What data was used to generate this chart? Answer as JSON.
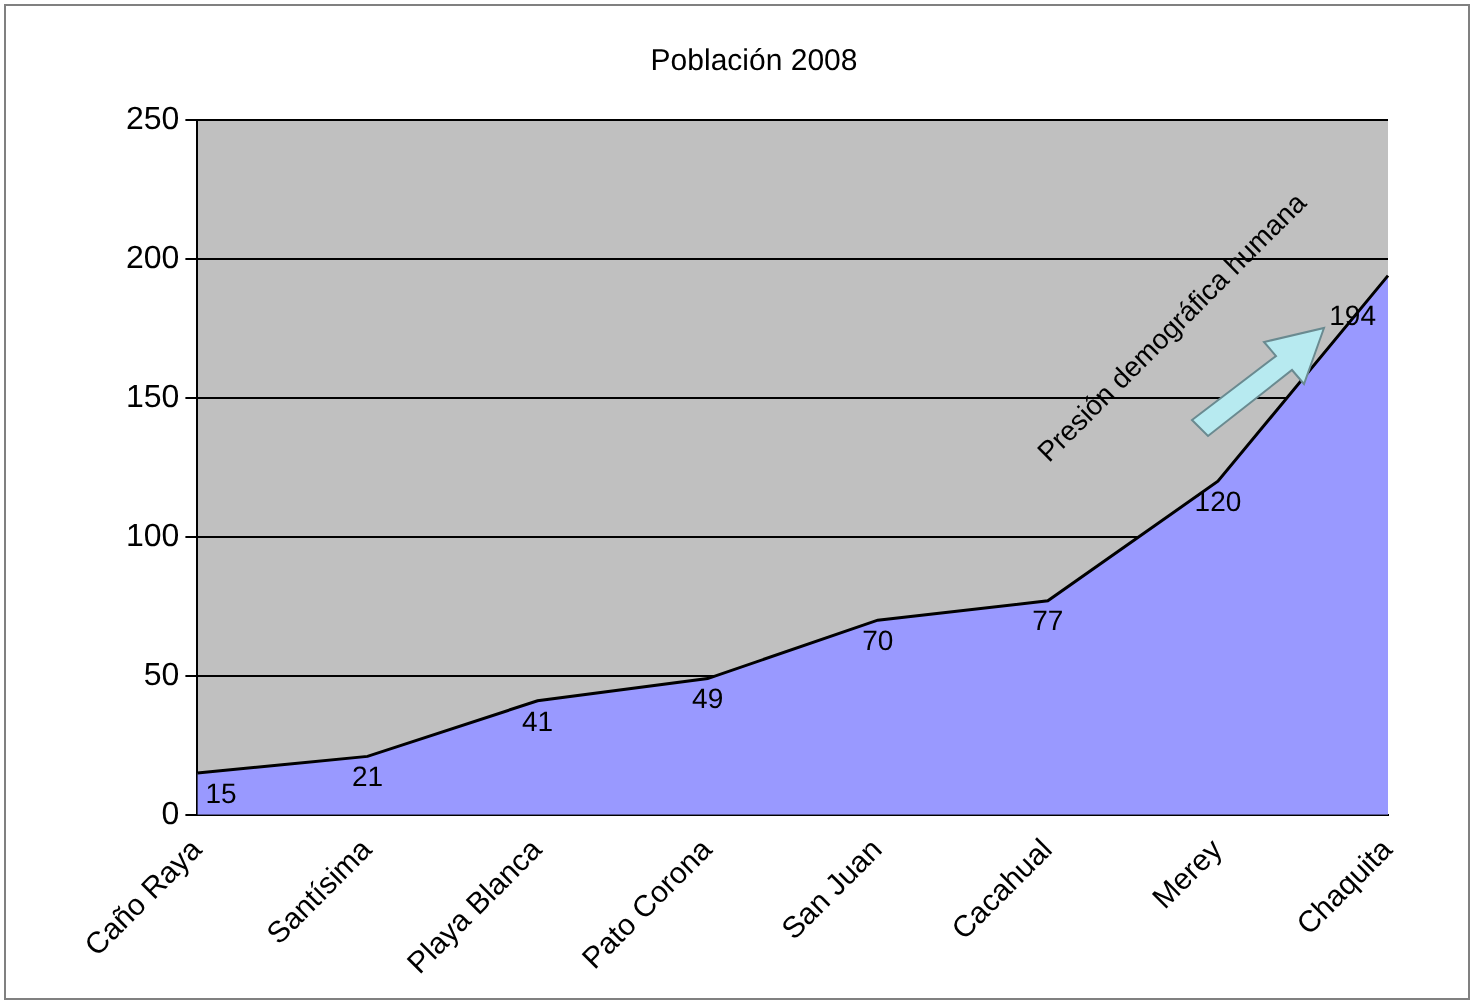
{
  "chart_data": {
    "type": "area",
    "title": "Población 2008",
    "categories": [
      "Caño Raya",
      "Santísima",
      "Playa Blanca",
      "Pato Corona",
      "San Juan",
      "Cacahual",
      "Merey",
      "Chaquita"
    ],
    "values": [
      15,
      21,
      41,
      49,
      70,
      77,
      120,
      194
    ],
    "color": "#9999ff",
    "ylim": [
      0,
      250
    ],
    "yticks": [
      0,
      50,
      100,
      150,
      200,
      250
    ],
    "grid": "y",
    "legend": false,
    "data_labels": true,
    "annotations": [
      "Presión demográfica humana"
    ]
  }
}
